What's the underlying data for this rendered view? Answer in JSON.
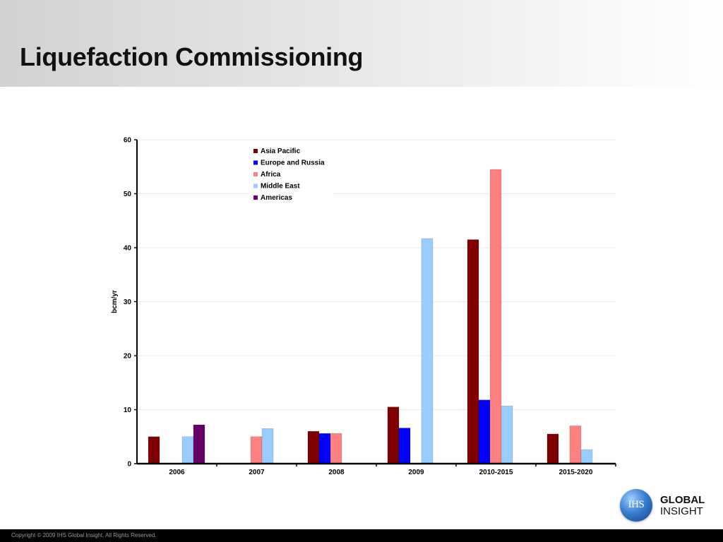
{
  "slide": {
    "title": "Liquefaction Commissioning",
    "copyright": "Copyright © 2009 IHS Global Insight. All Rights Reserved."
  },
  "logo": {
    "mark_text": "IHS",
    "word1": "GLOBAL",
    "word2": "INSIGHT"
  },
  "chart_data": {
    "type": "bar",
    "title": "",
    "xlabel": "",
    "ylabel": "bcm/yr",
    "ylim": [
      0,
      60
    ],
    "yticks": [
      0,
      10,
      20,
      30,
      40,
      50,
      60
    ],
    "grid": true,
    "legend_position": "top-center",
    "categories": [
      "2006",
      "2007",
      "2008",
      "2009",
      "2010-2015",
      "2015-2020"
    ],
    "series": [
      {
        "name": "Asia Pacific",
        "color": "#800000",
        "values": [
          5.0,
          0,
          6.0,
          10.5,
          41.5,
          5.5
        ]
      },
      {
        "name": "Europe and Russia",
        "color": "#0000ff",
        "values": [
          0,
          0,
          5.6,
          6.6,
          11.8,
          0
        ]
      },
      {
        "name": "Africa",
        "color": "#ff8080",
        "values": [
          0,
          5.0,
          5.6,
          0,
          54.5,
          7.0
        ]
      },
      {
        "name": "Middle East",
        "color": "#99ccff",
        "values": [
          5.0,
          6.5,
          0,
          41.7,
          10.7,
          2.6
        ]
      },
      {
        "name": "Americas",
        "color": "#660066",
        "values": [
          7.2,
          0,
          0,
          0,
          0,
          0
        ]
      }
    ]
  }
}
